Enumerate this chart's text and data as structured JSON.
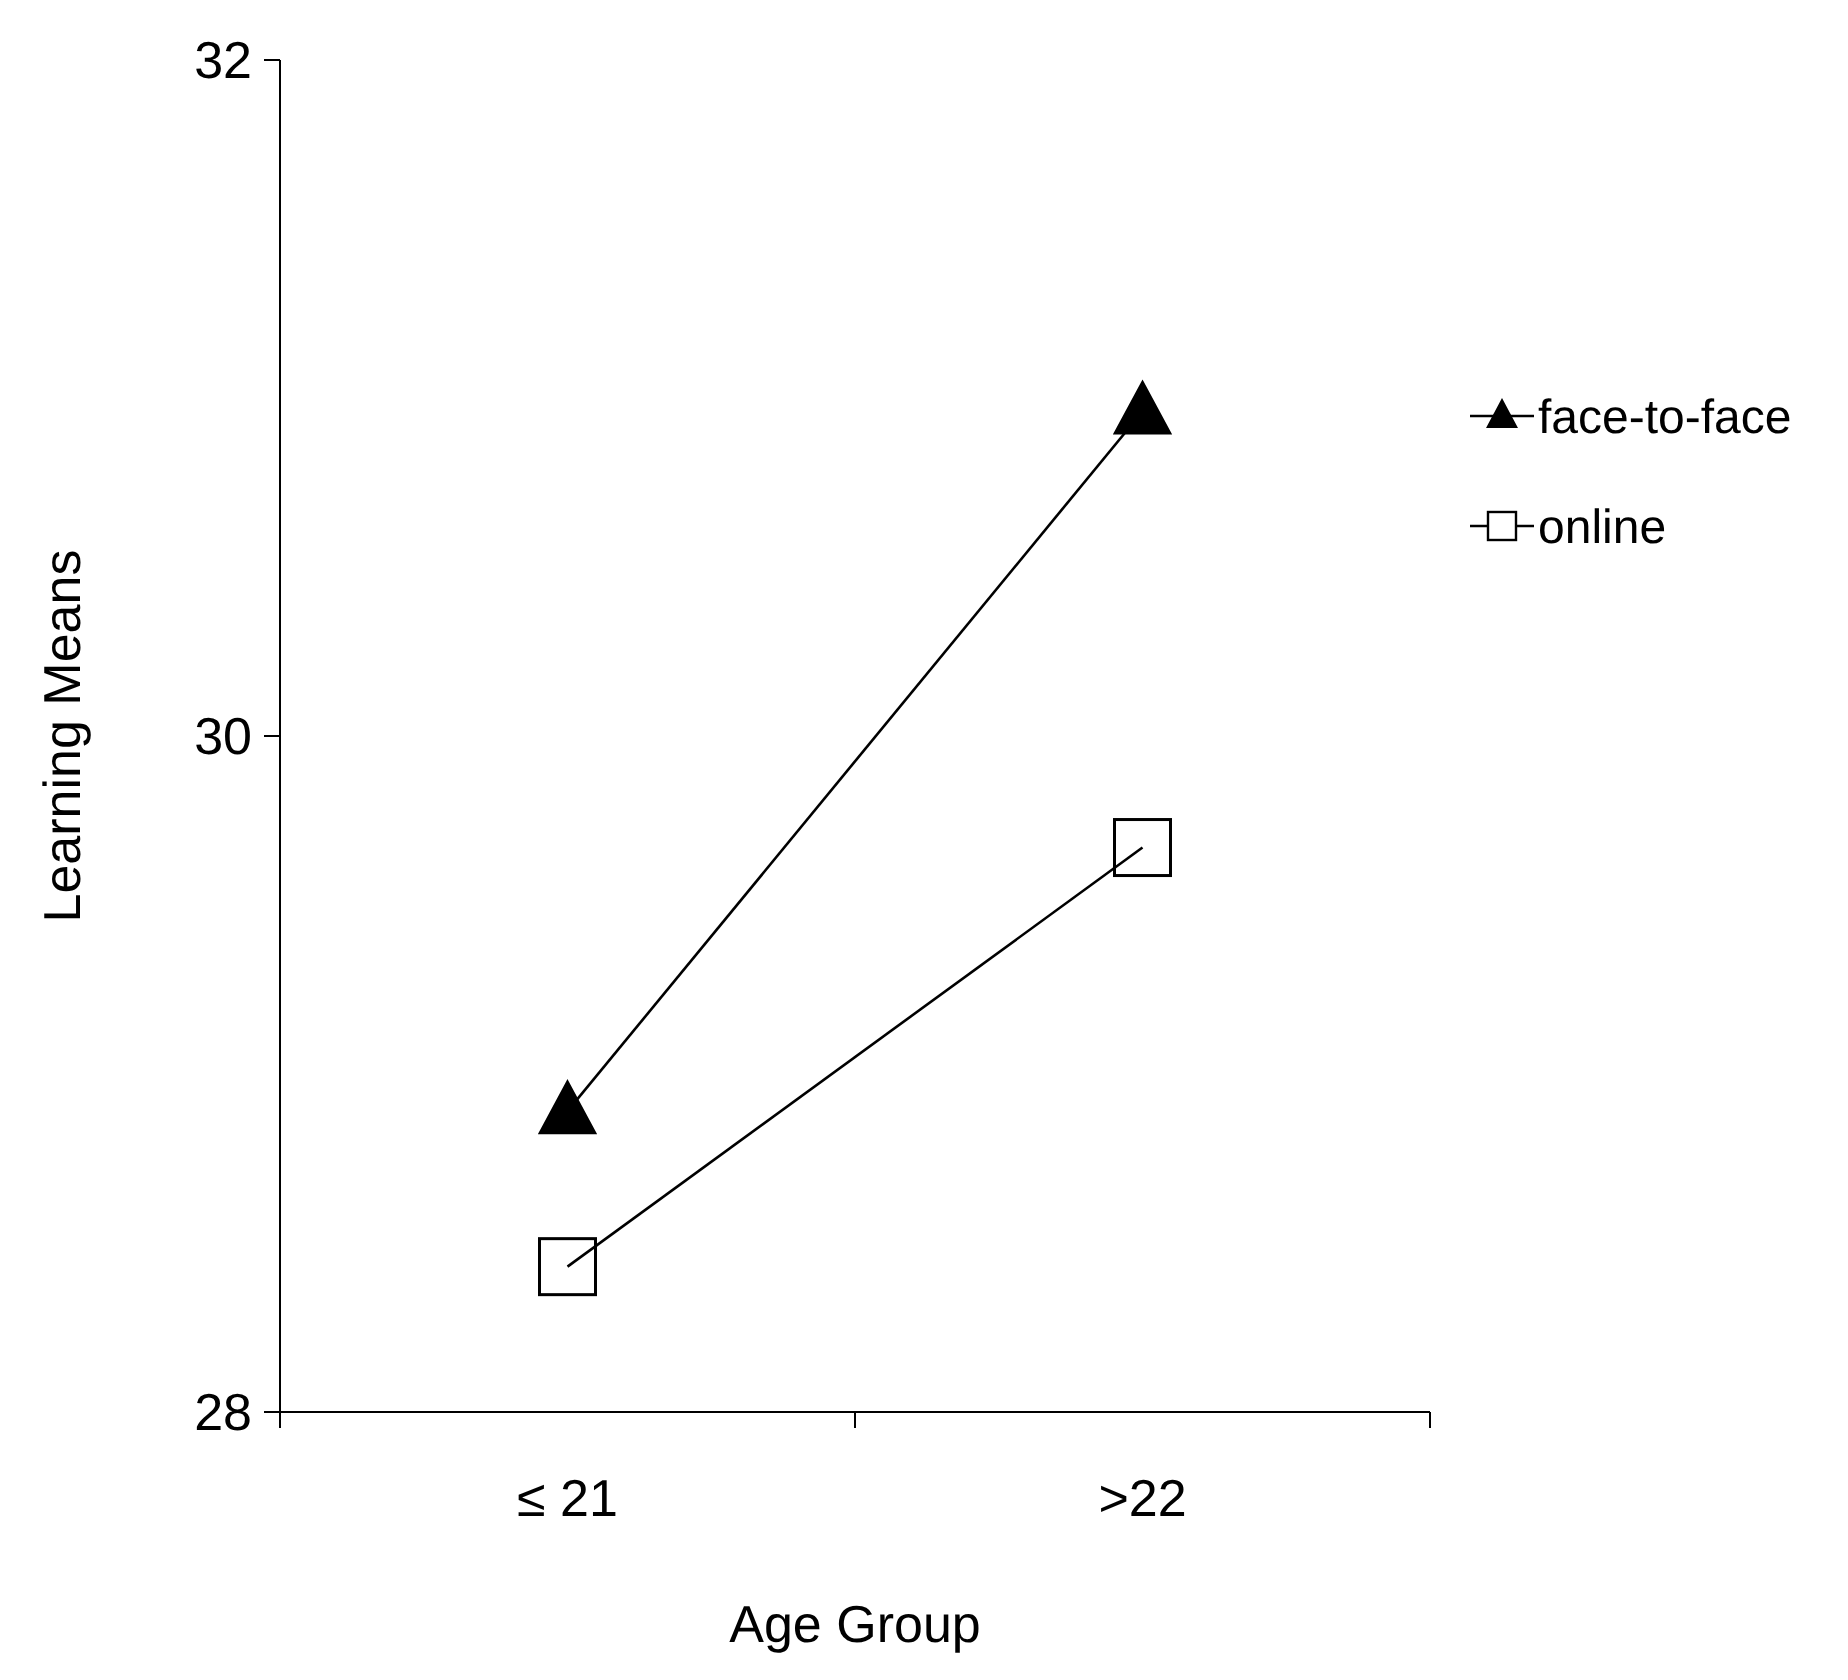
{
  "chart_data": {
    "type": "line",
    "xlabel": "Age Group",
    "ylabel": "Learning Means",
    "categories": [
      "≤ 21",
      ">22"
    ],
    "ylim": [
      28,
      32
    ],
    "yticks": [
      28,
      30,
      32
    ],
    "legend": "top right",
    "grid": false,
    "line_style": "solid",
    "series": [
      {
        "name": "face-to-face",
        "color": "#000000",
        "marker": "triangle",
        "values": [
          28.89,
          30.96
        ]
      },
      {
        "name": "online",
        "color": "#000000",
        "marker": "square",
        "values": [
          28.43,
          29.67
        ]
      }
    ]
  }
}
